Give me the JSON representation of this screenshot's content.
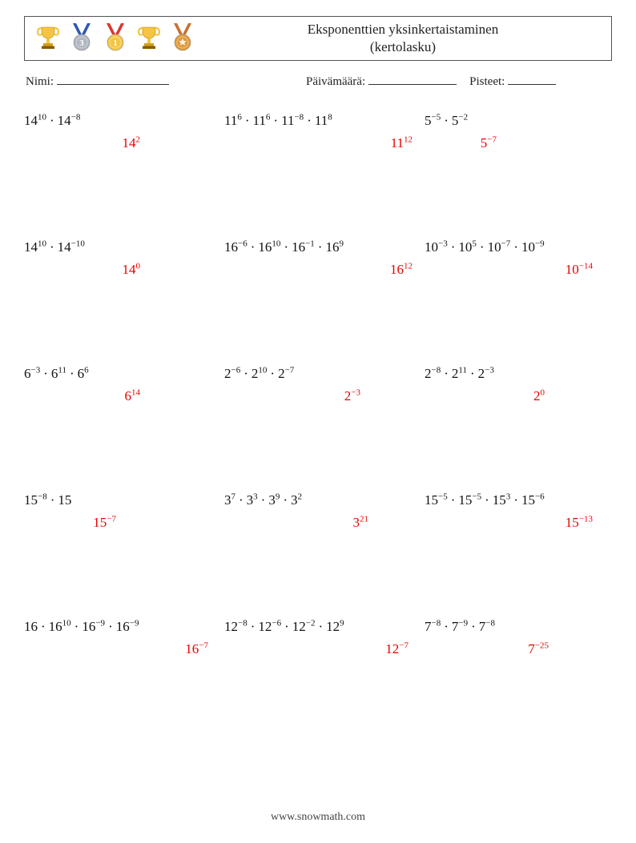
{
  "title_line1": "Eksponenttien yksinkertaistaminen",
  "title_line2": "(kertolasku)",
  "labels": {
    "name": "Nimi:",
    "date": "Päivämäärä:",
    "score": "Pisteet:"
  },
  "footer": "www.snowmath.com",
  "medals": [
    {
      "kind": "trophy",
      "cup": "#f5c542",
      "band": "#d4a017"
    },
    {
      "kind": "ribbon-medal",
      "ribbon": "#2e5aac",
      "disc": "#b0b7c0",
      "num": "3"
    },
    {
      "kind": "ribbon-medal",
      "ribbon": "#d63a2f",
      "disc": "#f5c542",
      "num": "1"
    },
    {
      "kind": "trophy",
      "cup": "#f5c542",
      "band": "#d4a017"
    },
    {
      "kind": "ribbon-medal",
      "ribbon": "#c96f2e",
      "disc": "#e09a3a",
      "num": ""
    }
  ],
  "dot": "·",
  "problems": [
    {
      "terms": [
        [
          "14",
          "10"
        ],
        [
          "14",
          "-8"
        ]
      ],
      "answer": [
        "14",
        "2"
      ]
    },
    {
      "terms": [
        [
          "11",
          "6"
        ],
        [
          "11",
          "6"
        ],
        [
          "11",
          "-8"
        ],
        [
          "11",
          "8"
        ]
      ],
      "answer": [
        "11",
        "12"
      ]
    },
    {
      "terms": [
        [
          "5",
          "-5"
        ],
        [
          "5",
          "-2"
        ]
      ],
      "answer": [
        "5",
        "-7"
      ]
    },
    {
      "terms": [
        [
          "14",
          "10"
        ],
        [
          "14",
          "-10"
        ]
      ],
      "answer": [
        "14",
        "0"
      ]
    },
    {
      "terms": [
        [
          "16",
          "-6"
        ],
        [
          "16",
          "10"
        ],
        [
          "16",
          "-1"
        ],
        [
          "16",
          "9"
        ]
      ],
      "answer": [
        "16",
        "12"
      ]
    },
    {
      "terms": [
        [
          "10",
          "-3"
        ],
        [
          "10",
          "5"
        ],
        [
          "10",
          "-7"
        ],
        [
          "10",
          "-9"
        ]
      ],
      "answer": [
        "10",
        "-14"
      ]
    },
    {
      "terms": [
        [
          "6",
          "-3"
        ],
        [
          "6",
          "11"
        ],
        [
          "6",
          "6"
        ]
      ],
      "answer": [
        "6",
        "14"
      ]
    },
    {
      "terms": [
        [
          "2",
          "-6"
        ],
        [
          "2",
          "10"
        ],
        [
          "2",
          "-7"
        ]
      ],
      "answer": [
        "2",
        "-3"
      ]
    },
    {
      "terms": [
        [
          "2",
          "-8"
        ],
        [
          "2",
          "11"
        ],
        [
          "2",
          "-3"
        ]
      ],
      "answer": [
        "2",
        "0"
      ]
    },
    {
      "terms": [
        [
          "15",
          "-8"
        ],
        [
          "15",
          ""
        ]
      ],
      "answer": [
        "15",
        "-7"
      ]
    },
    {
      "terms": [
        [
          "3",
          "7"
        ],
        [
          "3",
          "3"
        ],
        [
          "3",
          "9"
        ],
        [
          "3",
          "2"
        ]
      ],
      "answer": [
        "3",
        "21"
      ]
    },
    {
      "terms": [
        [
          "15",
          "-5"
        ],
        [
          "15",
          "-5"
        ],
        [
          "15",
          "3"
        ],
        [
          "15",
          "-6"
        ]
      ],
      "answer": [
        "15",
        "-13"
      ]
    },
    {
      "terms": [
        [
          "16",
          ""
        ],
        [
          "16",
          "10"
        ],
        [
          "16",
          "-9"
        ],
        [
          "16",
          "-9"
        ]
      ],
      "answer": [
        "16",
        "-7"
      ]
    },
    {
      "terms": [
        [
          "12",
          "-8"
        ],
        [
          "12",
          "-6"
        ],
        [
          "12",
          "-2"
        ],
        [
          "12",
          "9"
        ]
      ],
      "answer": [
        "12",
        "-7"
      ]
    },
    {
      "terms": [
        [
          "7",
          "-8"
        ],
        [
          "7",
          "-9"
        ],
        [
          "7",
          "-8"
        ]
      ],
      "answer": [
        "7",
        "-25"
      ]
    }
  ],
  "answer_padding": {
    "0": 105,
    "1": 15,
    "2": 140,
    "3": 105,
    "4": 15,
    "5": 20,
    "6": 105,
    "7": 80,
    "8": 80,
    "9": 135,
    "10": 70,
    "11": 20,
    "12": 20,
    "13": 20,
    "14": 75
  }
}
